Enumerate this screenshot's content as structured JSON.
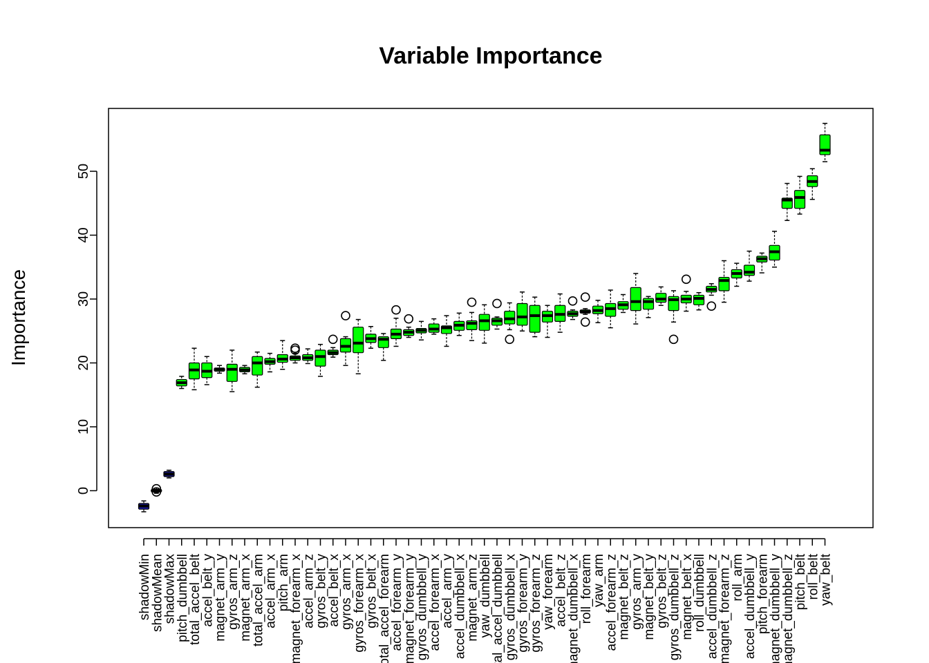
{
  "chart_data": {
    "type": "boxplot",
    "title": "Variable Importance",
    "xlabel": "",
    "ylabel": "Importance",
    "ylim": [
      -6,
      59
    ],
    "yticks": [
      0,
      10,
      20,
      30,
      40,
      50
    ],
    "grid": false,
    "legend": "none",
    "colors": {
      "shadow": "#1a1aa0",
      "confirmed": "#00ff00",
      "median": "#000000",
      "outlier": "#000000"
    },
    "boxes": [
      {
        "name": "shadowMin",
        "min": -3.3,
        "q1": -2.9,
        "med": -2.4,
        "q3": -2.0,
        "max": -1.6,
        "out": [],
        "group": "shadow"
      },
      {
        "name": "shadowMean",
        "min": -0.4,
        "q1": -0.2,
        "med": 0.0,
        "q3": 0.2,
        "max": 0.4,
        "out": [
          -0.2,
          0.3
        ],
        "group": "shadow"
      },
      {
        "name": "shadowMax",
        "min": 2.0,
        "q1": 2.2,
        "med": 2.6,
        "q3": 3.0,
        "max": 3.2,
        "out": [],
        "group": "shadow"
      },
      {
        "name": "pitch_dumbbell",
        "min": 16.0,
        "q1": 16.4,
        "med": 16.9,
        "q3": 17.4,
        "max": 17.9,
        "out": [],
        "group": "confirmed"
      },
      {
        "name": "total_accel_belt",
        "min": 15.8,
        "q1": 17.5,
        "med": 18.9,
        "q3": 20.0,
        "max": 22.3,
        "out": [],
        "group": "confirmed"
      },
      {
        "name": "accel_belt_y",
        "min": 16.6,
        "q1": 17.7,
        "med": 18.7,
        "q3": 20.0,
        "max": 21.0,
        "out": [],
        "group": "confirmed"
      },
      {
        "name": "magnet_arm_y",
        "min": 18.4,
        "q1": 18.7,
        "med": 19.0,
        "q3": 19.2,
        "max": 19.6,
        "out": [],
        "group": "confirmed"
      },
      {
        "name": "gyros_arm_z",
        "min": 15.5,
        "q1": 17.1,
        "med": 19.0,
        "q3": 19.8,
        "max": 22.0,
        "out": [],
        "group": "confirmed"
      },
      {
        "name": "magnet_arm_x",
        "min": 18.3,
        "q1": 18.6,
        "med": 18.9,
        "q3": 19.3,
        "max": 19.6,
        "out": [],
        "group": "confirmed"
      },
      {
        "name": "total_accel_arm",
        "min": 16.2,
        "q1": 18.1,
        "med": 20.0,
        "q3": 21.0,
        "max": 21.7,
        "out": [],
        "group": "confirmed"
      },
      {
        "name": "accel_arm_x",
        "min": 18.6,
        "q1": 19.8,
        "med": 20.2,
        "q3": 20.7,
        "max": 21.5,
        "out": [],
        "group": "confirmed"
      },
      {
        "name": "pitch_arm",
        "min": 19.0,
        "q1": 20.1,
        "med": 20.6,
        "q3": 21.3,
        "max": 23.5,
        "out": [],
        "group": "confirmed"
      },
      {
        "name": "magnet_forearm_x",
        "min": 20.0,
        "q1": 20.4,
        "med": 20.8,
        "q3": 21.1,
        "max": 21.5,
        "out": [
          22.0,
          22.3
        ],
        "group": "confirmed"
      },
      {
        "name": "accel_arm_z",
        "min": 19.9,
        "q1": 20.4,
        "med": 20.8,
        "q3": 21.3,
        "max": 22.2,
        "out": [],
        "group": "confirmed"
      },
      {
        "name": "gyros_belt_y",
        "min": 17.9,
        "q1": 19.5,
        "med": 21.0,
        "q3": 22.0,
        "max": 22.9,
        "out": [],
        "group": "confirmed"
      },
      {
        "name": "accel_belt_x",
        "min": 20.9,
        "q1": 21.3,
        "med": 21.6,
        "q3": 22.0,
        "max": 22.4,
        "out": [
          23.7
        ],
        "group": "confirmed"
      },
      {
        "name": "gyros_arm_x",
        "min": 19.6,
        "q1": 21.7,
        "med": 22.6,
        "q3": 23.8,
        "max": 24.1,
        "out": [
          27.4
        ],
        "group": "confirmed"
      },
      {
        "name": "gyros_forearm_x",
        "min": 18.3,
        "q1": 21.6,
        "med": 23.1,
        "q3": 25.6,
        "max": 26.8,
        "out": [],
        "group": "confirmed"
      },
      {
        "name": "gyros_belt_x",
        "min": 22.3,
        "q1": 23.2,
        "med": 23.8,
        "q3": 24.5,
        "max": 25.7,
        "out": [],
        "group": "confirmed"
      },
      {
        "name": "total_accel_forearm",
        "min": 20.4,
        "q1": 22.4,
        "med": 23.7,
        "q3": 24.1,
        "max": 24.6,
        "out": [],
        "group": "confirmed"
      },
      {
        "name": "accel_forearm_y",
        "min": 22.6,
        "q1": 23.8,
        "med": 24.5,
        "q3": 25.3,
        "max": 27.0,
        "out": [
          28.3
        ],
        "group": "confirmed"
      },
      {
        "name": "magnet_forearm_y",
        "min": 24.0,
        "q1": 24.3,
        "med": 24.8,
        "q3": 25.2,
        "max": 25.6,
        "out": [
          26.9
        ],
        "group": "confirmed"
      },
      {
        "name": "gyros_dumbbell_y",
        "min": 23.6,
        "q1": 24.7,
        "med": 25.1,
        "q3": 25.4,
        "max": 26.5,
        "out": [],
        "group": "confirmed"
      },
      {
        "name": "accel_forearm_x",
        "min": 24.5,
        "q1": 24.8,
        "med": 25.3,
        "q3": 26.1,
        "max": 26.9,
        "out": [],
        "group": "confirmed"
      },
      {
        "name": "accel_arm_y",
        "min": 22.6,
        "q1": 24.6,
        "med": 25.5,
        "q3": 25.8,
        "max": 27.4,
        "out": [],
        "group": "confirmed"
      },
      {
        "name": "accel_dumbbell_x",
        "min": 24.3,
        "q1": 25.1,
        "med": 25.9,
        "q3": 26.5,
        "max": 27.8,
        "out": [],
        "group": "confirmed"
      },
      {
        "name": "magnet_arm_z",
        "min": 23.5,
        "q1": 25.2,
        "med": 26.2,
        "q3": 26.6,
        "max": 27.9,
        "out": [
          29.5
        ],
        "group": "confirmed"
      },
      {
        "name": "yaw_dumbbell",
        "min": 23.1,
        "q1": 25.1,
        "med": 26.6,
        "q3": 27.6,
        "max": 29.1,
        "out": [],
        "group": "confirmed"
      },
      {
        "name": "total_accel_dumbbell",
        "min": 25.3,
        "q1": 25.9,
        "med": 26.6,
        "q3": 27.0,
        "max": 27.2,
        "out": [
          29.3
        ],
        "group": "confirmed"
      },
      {
        "name": "gyros_dumbbell_x",
        "min": 25.2,
        "q1": 26.1,
        "med": 26.9,
        "q3": 28.1,
        "max": 29.4,
        "out": [
          23.7
        ],
        "group": "confirmed"
      },
      {
        "name": "gyros_forearm_y",
        "min": 25.0,
        "q1": 25.9,
        "med": 27.2,
        "q3": 29.3,
        "max": 31.1,
        "out": [],
        "group": "confirmed"
      },
      {
        "name": "gyros_forearm_z",
        "min": 24.1,
        "q1": 24.8,
        "med": 27.4,
        "q3": 29.0,
        "max": 30.3,
        "out": [],
        "group": "confirmed"
      },
      {
        "name": "yaw_forearm",
        "min": 24.0,
        "q1": 26.4,
        "med": 27.4,
        "q3": 28.1,
        "max": 29.0,
        "out": [],
        "group": "confirmed"
      },
      {
        "name": "accel_belt_z",
        "min": 24.8,
        "q1": 26.5,
        "med": 27.6,
        "q3": 29.0,
        "max": 30.8,
        "out": [],
        "group": "confirmed"
      },
      {
        "name": "magnet_dumbbell_x",
        "min": 26.8,
        "q1": 27.3,
        "med": 27.7,
        "q3": 28.1,
        "max": 28.3,
        "out": [
          29.7
        ],
        "group": "confirmed"
      },
      {
        "name": "roll_forearm",
        "min": 27.6,
        "q1": 27.8,
        "med": 28.0,
        "q3": 28.3,
        "max": 28.5,
        "out": [
          26.4,
          30.3
        ],
        "group": "confirmed"
      },
      {
        "name": "yaw_arm",
        "min": 26.3,
        "q1": 27.7,
        "med": 28.2,
        "q3": 28.9,
        "max": 29.8,
        "out": [],
        "group": "confirmed"
      },
      {
        "name": "accel_forearm_z",
        "min": 25.5,
        "q1": 27.3,
        "med": 28.5,
        "q3": 29.3,
        "max": 31.4,
        "out": [],
        "group": "confirmed"
      },
      {
        "name": "magnet_belt_z",
        "min": 27.9,
        "q1": 28.4,
        "med": 29.1,
        "q3": 29.6,
        "max": 30.7,
        "out": [],
        "group": "confirmed"
      },
      {
        "name": "gyros_arm_y",
        "min": 26.1,
        "q1": 28.2,
        "med": 29.6,
        "q3": 31.8,
        "max": 34.0,
        "out": [],
        "group": "confirmed"
      },
      {
        "name": "magnet_belt_y",
        "min": 27.1,
        "q1": 28.4,
        "med": 29.6,
        "q3": 30.1,
        "max": 30.4,
        "out": [],
        "group": "confirmed"
      },
      {
        "name": "gyros_belt_z",
        "min": 29.0,
        "q1": 29.5,
        "med": 30.0,
        "q3": 30.9,
        "max": 31.9,
        "out": [],
        "group": "confirmed"
      },
      {
        "name": "gyros_dumbbell_z",
        "min": 26.4,
        "q1": 28.2,
        "med": 29.9,
        "q3": 30.4,
        "max": 31.3,
        "out": [
          23.7
        ],
        "group": "confirmed"
      },
      {
        "name": "magnet_belt_x",
        "min": 28.1,
        "q1": 29.4,
        "med": 30.0,
        "q3": 30.6,
        "max": 31.2,
        "out": [
          33.1
        ],
        "group": "confirmed"
      },
      {
        "name": "roll_dumbbell",
        "min": 28.3,
        "q1": 29.1,
        "med": 30.1,
        "q3": 30.6,
        "max": 31.0,
        "out": [],
        "group": "confirmed"
      },
      {
        "name": "accel_dumbbell_z",
        "min": 30.6,
        "q1": 31.1,
        "med": 31.5,
        "q3": 32.0,
        "max": 32.4,
        "out": [
          28.9
        ],
        "group": "confirmed"
      },
      {
        "name": "magnet_forearm_z",
        "min": 29.5,
        "q1": 31.3,
        "med": 32.9,
        "q3": 33.4,
        "max": 36.0,
        "out": [],
        "group": "confirmed"
      },
      {
        "name": "roll_arm",
        "min": 32.0,
        "q1": 33.3,
        "med": 34.0,
        "q3": 34.6,
        "max": 35.6,
        "out": [],
        "group": "confirmed"
      },
      {
        "name": "accel_dumbbell_y",
        "min": 32.8,
        "q1": 33.7,
        "med": 34.2,
        "q3": 35.3,
        "max": 37.5,
        "out": [],
        "group": "confirmed"
      },
      {
        "name": "pitch_forearm",
        "min": 34.1,
        "q1": 35.8,
        "med": 36.3,
        "q3": 36.7,
        "max": 37.2,
        "out": [],
        "group": "confirmed"
      },
      {
        "name": "magnet_dumbbell_y",
        "min": 35.0,
        "q1": 36.1,
        "med": 37.4,
        "q3": 38.4,
        "max": 40.6,
        "out": [],
        "group": "confirmed"
      },
      {
        "name": "magnet_dumbbell_z",
        "min": 42.3,
        "q1": 44.2,
        "med": 45.5,
        "q3": 45.8,
        "max": 48.1,
        "out": [],
        "group": "confirmed"
      },
      {
        "name": "pitch_belt",
        "min": 43.3,
        "q1": 44.2,
        "med": 45.9,
        "q3": 47.0,
        "max": 49.2,
        "out": [],
        "group": "confirmed"
      },
      {
        "name": "roll_belt",
        "min": 45.6,
        "q1": 47.6,
        "med": 48.4,
        "q3": 49.3,
        "max": 50.4,
        "out": [],
        "group": "confirmed"
      },
      {
        "name": "yaw_belt",
        "min": 51.5,
        "q1": 52.6,
        "med": 53.3,
        "q3": 55.7,
        "max": 57.5,
        "out": [],
        "group": "confirmed"
      }
    ]
  }
}
